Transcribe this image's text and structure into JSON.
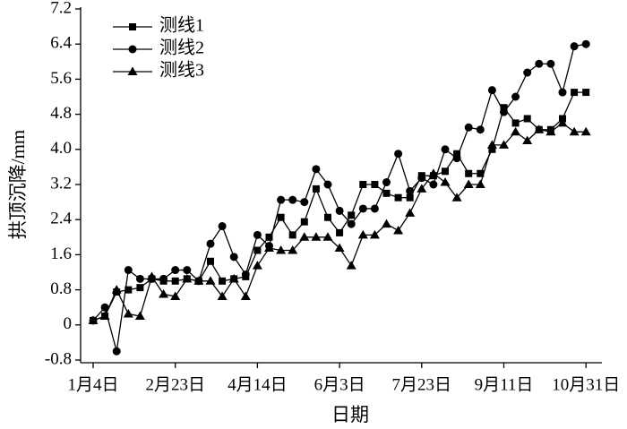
{
  "chart_data": {
    "type": "line",
    "x_label": "日期",
    "y_label": "拱顶沉降/mm",
    "categories": [
      "1月4日",
      null,
      null,
      null,
      null,
      null,
      null,
      "2月23日",
      null,
      null,
      null,
      null,
      null,
      null,
      "4月14日",
      null,
      null,
      null,
      null,
      null,
      null,
      "6月3日",
      null,
      null,
      null,
      null,
      null,
      null,
      "7月23日",
      null,
      null,
      null,
      null,
      null,
      null,
      "9月11日",
      null,
      null,
      null,
      null,
      null,
      null,
      "10月31日"
    ],
    "series": [
      {
        "name": "测线1",
        "color": "#000000",
        "marker": "square",
        "values": [
          0.1,
          0.2,
          0.75,
          0.8,
          0.85,
          1.05,
          1.0,
          1.0,
          1.05,
          1.0,
          1.45,
          1.0,
          1.05,
          1.1,
          1.7,
          2.0,
          2.45,
          2.05,
          2.35,
          3.1,
          2.45,
          2.1,
          2.5,
          3.2,
          3.2,
          3.0,
          2.9,
          2.9,
          3.4,
          3.4,
          3.5,
          3.9,
          3.45,
          3.45,
          4.0,
          4.95,
          4.6,
          4.7,
          4.45,
          4.45,
          4.7,
          5.3,
          5.3
        ]
      },
      {
        "name": "测线2",
        "color": "#000000",
        "marker": "circle",
        "values": [
          0.1,
          0.4,
          -0.6,
          1.25,
          1.05,
          1.05,
          1.05,
          1.25,
          1.25,
          1.0,
          1.85,
          2.25,
          1.55,
          1.15,
          2.05,
          1.8,
          2.85,
          2.85,
          2.8,
          3.55,
          3.2,
          2.6,
          2.3,
          2.65,
          2.65,
          3.25,
          3.9,
          3.05,
          3.35,
          3.2,
          4.0,
          3.8,
          4.5,
          4.45,
          5.35,
          4.85,
          5.2,
          5.75,
          5.95,
          5.95,
          5.3,
          6.35,
          6.4
        ]
      },
      {
        "name": "测线3",
        "color": "#000000",
        "marker": "triangle",
        "values": [
          0.1,
          0.2,
          0.8,
          0.25,
          0.2,
          1.1,
          0.7,
          0.65,
          1.05,
          1.0,
          1.0,
          0.65,
          1.05,
          0.65,
          1.35,
          1.75,
          1.7,
          1.7,
          2.0,
          2.0,
          2.0,
          1.75,
          1.35,
          2.05,
          2.05,
          2.3,
          2.15,
          2.55,
          3.1,
          3.45,
          3.25,
          2.9,
          3.2,
          3.2,
          4.1,
          4.1,
          4.4,
          4.2,
          4.45,
          4.4,
          4.6,
          4.4,
          4.4
        ]
      }
    ],
    "ylim": [
      -0.8,
      7.2
    ],
    "yticks": [
      -0.8,
      0,
      0.8,
      1.6,
      2.4,
      3.2,
      {
        "value": 4,
        "label": "4.0"
      },
      4.8,
      5.6,
      6.4,
      7.2
    ],
    "legend": "upper left",
    "grid": false
  }
}
